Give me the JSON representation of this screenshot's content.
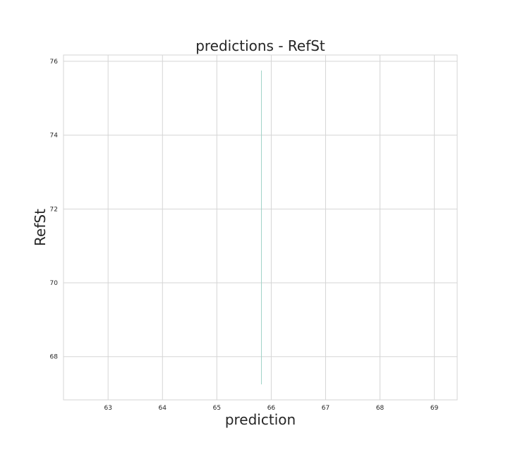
{
  "chart_data": {
    "type": "line",
    "title": "predictions - RefSt",
    "xlabel": "prediction",
    "ylabel": "RefSt",
    "xlim": [
      62.18,
      69.42
    ],
    "ylim": [
      66.83,
      76.17
    ],
    "x_ticks": [
      63,
      64,
      65,
      66,
      67,
      68,
      69
    ],
    "y_ticks": [
      68,
      70,
      72,
      74,
      76
    ],
    "grid": true,
    "series": [
      {
        "x": [
          65.82,
          65.82
        ],
        "y": [
          67.25,
          75.75
        ],
        "color": "#9fd3c7"
      }
    ]
  },
  "colors": {
    "background": "#ffffff",
    "plot_background": "#ffffff",
    "grid": "#d5d5d5",
    "spine": "#d5d5d5",
    "text": "#262626"
  }
}
